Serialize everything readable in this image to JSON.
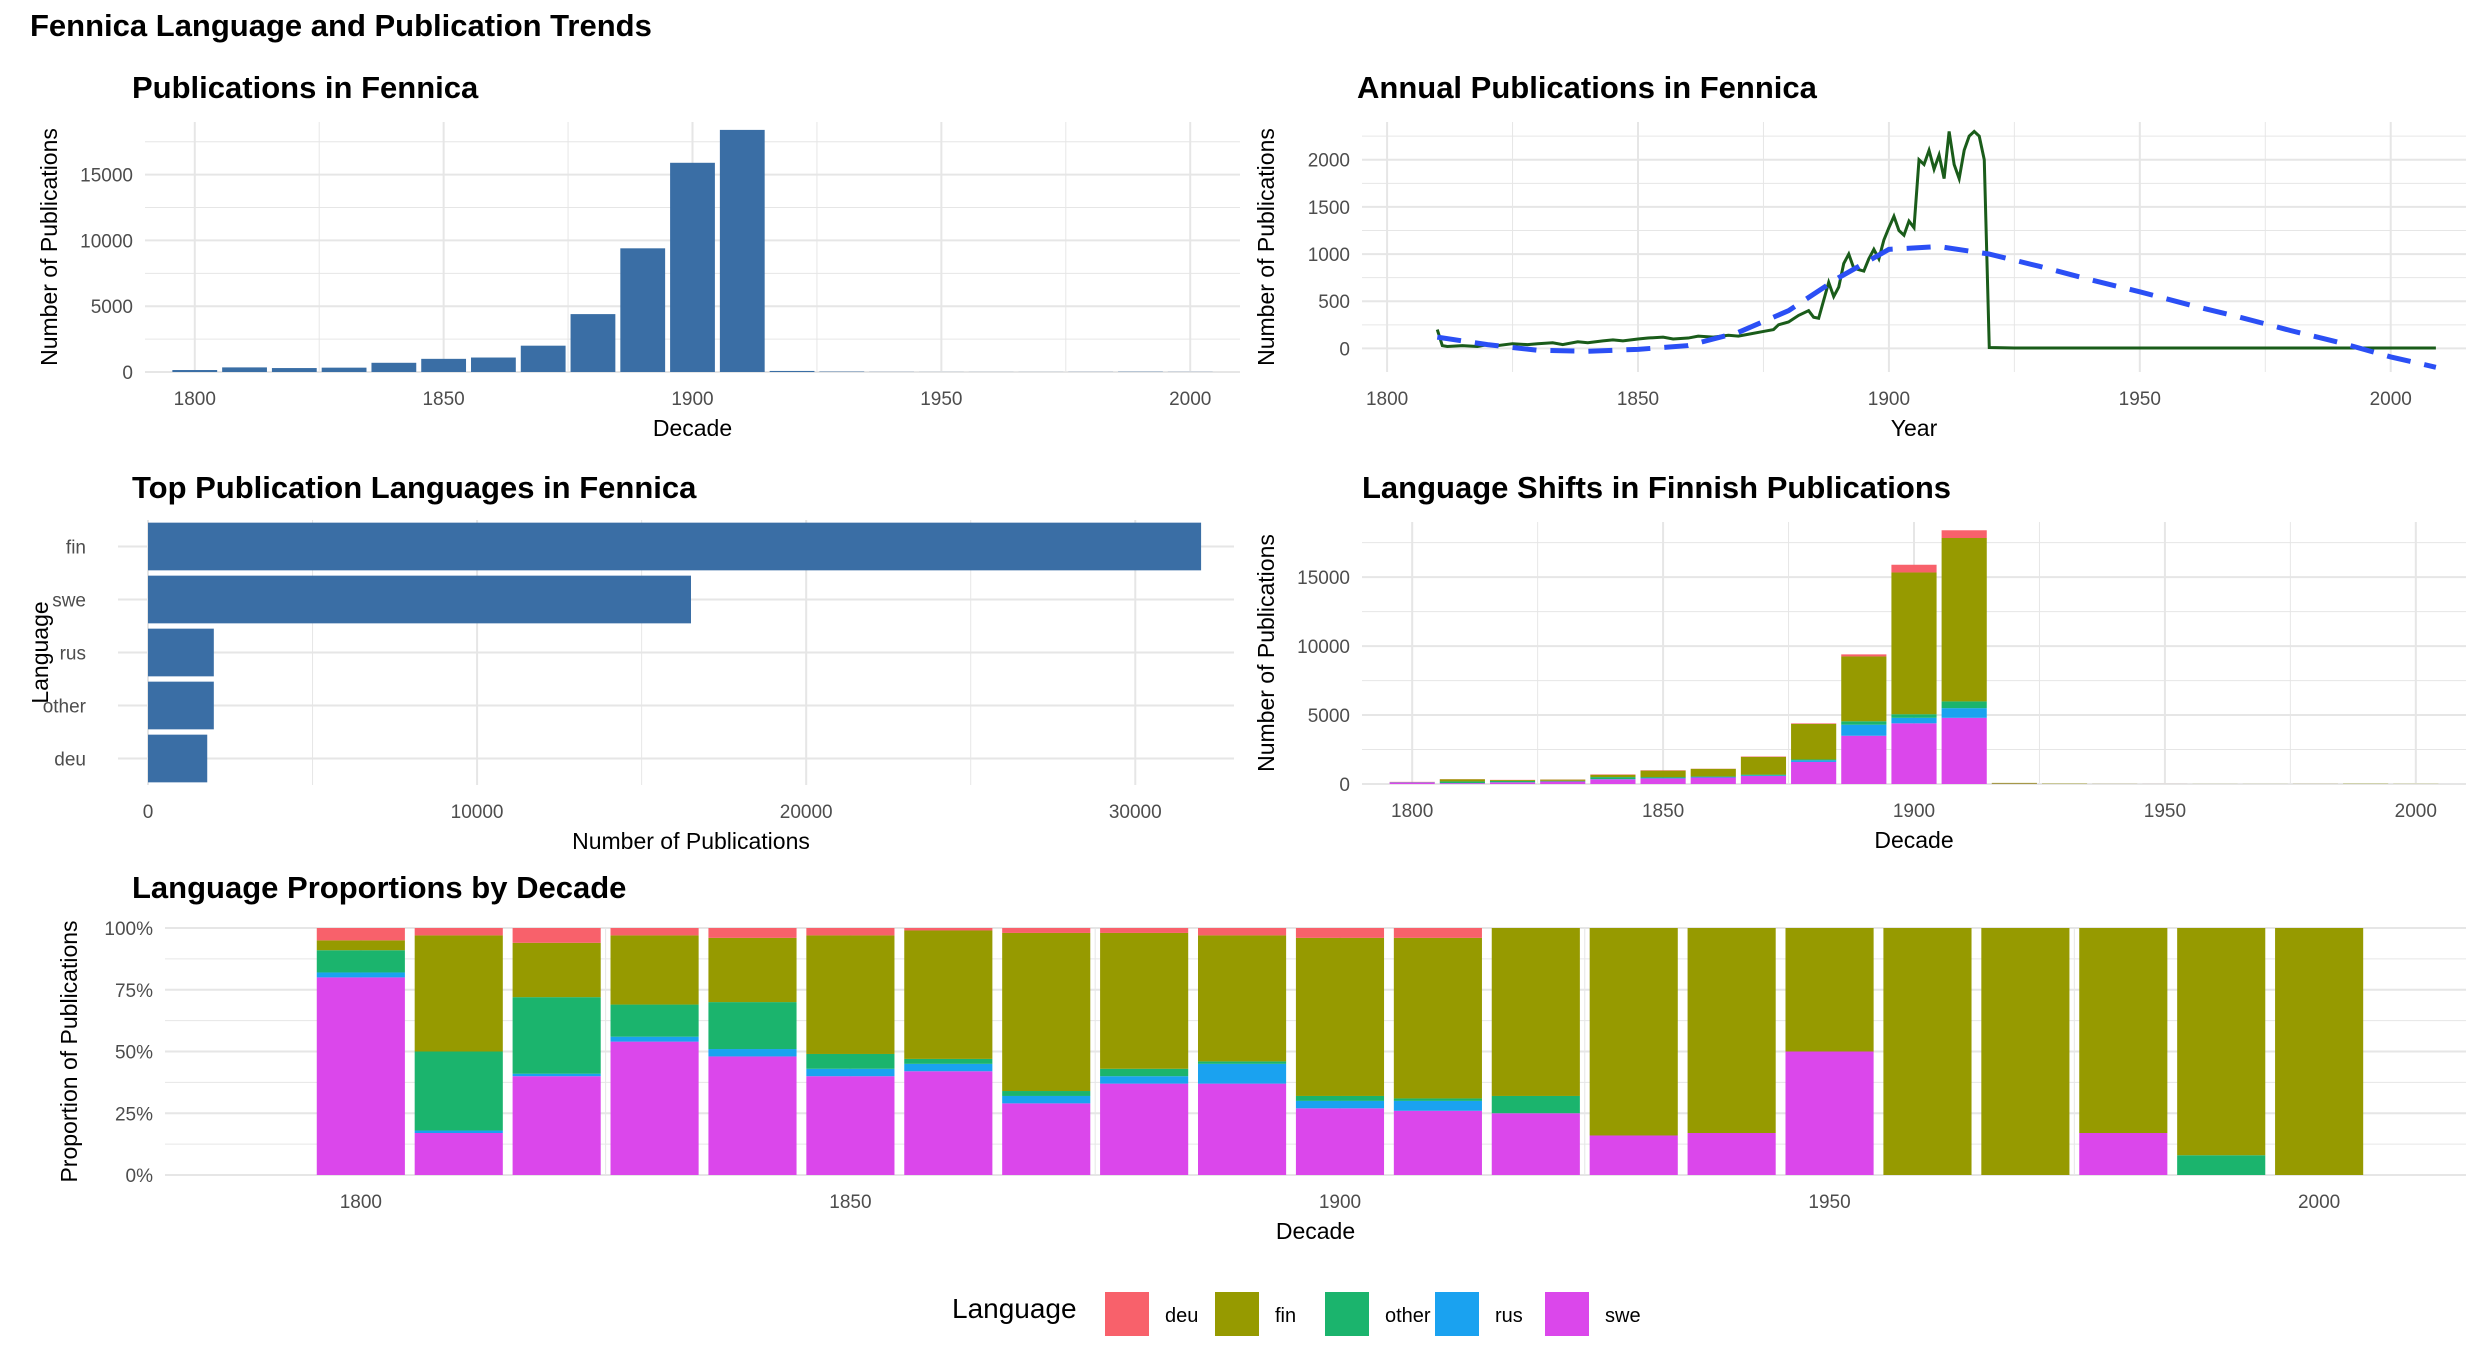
{
  "title": "Fennica Language and Publication Trends",
  "colors": {
    "bar": "#3a6ea5",
    "line": "#1a5c1a",
    "smooth": "#2b4ff5",
    "grid": "#e6e6e6",
    "deu": "#f8616b",
    "fin": "#969a00",
    "other": "#1bb46d",
    "rus": "#1aa2f0",
    "swe": "#db47eb"
  },
  "legend": {
    "title": "Language",
    "position": "bottom",
    "items": [
      "deu",
      "fin",
      "other",
      "rus",
      "swe"
    ]
  },
  "chart_data": [
    {
      "id": "decade-bars",
      "type": "bar",
      "title": "Publications in Fennica",
      "xlabel": "Decade",
      "ylabel": "Number of Publications",
      "xlim": [
        1790,
        2010
      ],
      "ylim": [
        0,
        19000
      ],
      "xticks": [
        1800,
        1850,
        1900,
        1950,
        2000
      ],
      "yticks": [
        0,
        5000,
        10000,
        15000
      ],
      "x": [
        1800,
        1810,
        1820,
        1830,
        1840,
        1850,
        1860,
        1870,
        1880,
        1890,
        1900,
        1910,
        1920,
        1930,
        1940,
        1950,
        1960,
        1970,
        1980,
        1990,
        2000
      ],
      "values": [
        150,
        350,
        300,
        330,
        700,
        1000,
        1100,
        2000,
        4400,
        9400,
        15900,
        18400,
        80,
        30,
        10,
        5,
        5,
        5,
        10,
        20,
        10
      ]
    },
    {
      "id": "annual-line",
      "type": "line",
      "title": "Annual Publications in Fennica",
      "xlabel": "Year",
      "ylabel": "Number of Publications",
      "xlim": [
        1795,
        2015
      ],
      "ylim": [
        -250,
        2400
      ],
      "xticks": [
        1800,
        1850,
        1900,
        1950,
        2000
      ],
      "yticks": [
        0,
        500,
        1000,
        1500,
        2000
      ],
      "series": [
        {
          "x": [
            1810,
            1811,
            1812,
            1815,
            1818,
            1820,
            1822,
            1825,
            1828,
            1830,
            1833,
            1835,
            1838,
            1840,
            1843,
            1845,
            1847,
            1850,
            1852,
            1855,
            1857,
            1860,
            1862,
            1865,
            1868,
            1870,
            1872,
            1875,
            1877,
            1878,
            1880,
            1882,
            1884,
            1885,
            1886,
            1888,
            1889,
            1890,
            1891,
            1892,
            1893,
            1895,
            1896,
            1897,
            1898,
            1899,
            1900,
            1901,
            1902,
            1903,
            1904,
            1905,
            1906,
            1907,
            1908,
            1909,
            1910,
            1911,
            1912,
            1913,
            1914,
            1915,
            1916,
            1917,
            1918,
            1919,
            1920,
            1925,
            1930,
            1940,
            1950,
            1960,
            1970,
            1980,
            1990,
            2000,
            2009
          ],
          "values": [
            200,
            30,
            20,
            30,
            20,
            40,
            30,
            50,
            40,
            50,
            60,
            40,
            70,
            60,
            80,
            90,
            80,
            100,
            110,
            120,
            100,
            110,
            130,
            120,
            140,
            130,
            150,
            180,
            200,
            250,
            280,
            350,
            400,
            330,
            320,
            700,
            550,
            650,
            900,
            1000,
            850,
            820,
            950,
            1050,
            950,
            1150,
            1280,
            1400,
            1250,
            1200,
            1350,
            1280,
            2000,
            1950,
            2100,
            1900,
            2050,
            1800,
            2300,
            1950,
            1800,
            2100,
            2250,
            2300,
            2250,
            2000,
            10,
            5,
            5,
            5,
            5,
            5,
            5,
            5,
            5,
            5,
            5
          ]
        },
        {
          "x": [
            1810,
            1820,
            1830,
            1840,
            1850,
            1860,
            1870,
            1880,
            1890,
            1900,
            1910,
            1920,
            1930,
            1940,
            1950,
            1960,
            1970,
            1980,
            1990,
            2000,
            2009
          ],
          "values": [
            120,
            40,
            -20,
            -30,
            -10,
            30,
            170,
            400,
            750,
            1050,
            1080,
            1000,
            870,
            730,
            600,
            460,
            330,
            190,
            60,
            -90,
            -200
          ]
        }
      ]
    },
    {
      "id": "language-bars",
      "type": "bar",
      "title": "Top Publication Languages in Fennica",
      "xlabel": "Number of Publications",
      "ylabel": "Language",
      "xlim": [
        0,
        33000
      ],
      "xticks": [
        0,
        10000,
        20000,
        30000
      ],
      "categories": [
        "fin",
        "swe",
        "rus",
        "other",
        "deu"
      ],
      "values": [
        32000,
        16500,
        2000,
        2000,
        1800
      ]
    },
    {
      "id": "language-stack",
      "type": "bar",
      "title": "Language Shifts in Finnish Publications",
      "xlabel": "Decade",
      "ylabel": "Number of Publications",
      "xlim": [
        1790,
        2010
      ],
      "ylim": [
        0,
        19000
      ],
      "xticks": [
        1800,
        1850,
        1900,
        1950,
        2000
      ],
      "yticks": [
        0,
        5000,
        10000,
        15000
      ],
      "x": [
        1800,
        1810,
        1820,
        1830,
        1840,
        1850,
        1860,
        1870,
        1880,
        1890,
        1900,
        1910,
        1920,
        1930,
        1940,
        1950,
        1960,
        1970,
        1980,
        1990,
        2000
      ],
      "series": [
        {
          "name": "swe",
          "values": [
            120,
            60,
            120,
            180,
            340,
            400,
            470,
            580,
            1600,
            3500,
            4400,
            4800,
            20,
            5,
            2,
            2,
            0,
            0,
            2,
            0,
            0
          ]
        },
        {
          "name": "rus",
          "values": [
            5,
            5,
            5,
            5,
            20,
            30,
            40,
            50,
            120,
            800,
            400,
            700,
            0,
            0,
            0,
            0,
            0,
            0,
            0,
            0,
            0
          ]
        },
        {
          "name": "other",
          "values": [
            15,
            120,
            95,
            45,
            140,
            70,
            40,
            50,
            60,
            250,
            260,
            490,
            5,
            0,
            0,
            0,
            0,
            0,
            0,
            2,
            0
          ]
        },
        {
          "name": "fin",
          "values": [
            5,
            160,
            65,
            90,
            170,
            470,
            550,
            1290,
            2580,
            4700,
            10280,
            11850,
            55,
            25,
            8,
            3,
            5,
            5,
            8,
            18,
            10
          ]
        },
        {
          "name": "deu",
          "values": [
            10,
            10,
            15,
            10,
            30,
            30,
            10,
            30,
            40,
            150,
            560,
            560,
            0,
            0,
            0,
            0,
            0,
            0,
            0,
            0,
            0
          ]
        }
      ]
    },
    {
      "id": "proportion-stack",
      "type": "bar",
      "title": "Language Proportions by Decade",
      "xlabel": "Decade",
      "ylabel": "Proportion of Publications",
      "xlim": [
        1780,
        2015
      ],
      "ylim": [
        0,
        1
      ],
      "xticks": [
        1800,
        1850,
        1900,
        1950,
        2000
      ],
      "yticks": [
        "0%",
        "25%",
        "50%",
        "75%",
        "100%"
      ],
      "x": [
        1800,
        1810,
        1820,
        1830,
        1840,
        1850,
        1860,
        1870,
        1880,
        1890,
        1900,
        1910,
        1920,
        1930,
        1940,
        1950,
        1960,
        1970,
        1980,
        1990,
        2000
      ],
      "series": [
        {
          "name": "swe",
          "values": [
            0.8,
            0.17,
            0.4,
            0.54,
            0.48,
            0.4,
            0.42,
            0.29,
            0.37,
            0.37,
            0.27,
            0.26,
            0.25,
            0.16,
            0.17,
            0.5,
            0,
            0,
            0.17,
            0,
            0
          ]
        },
        {
          "name": "rus",
          "values": [
            0.02,
            0.01,
            0.01,
            0.02,
            0.03,
            0.03,
            0.03,
            0.03,
            0.03,
            0.08,
            0.03,
            0.04,
            0,
            0,
            0,
            0,
            0,
            0,
            0,
            0,
            0
          ]
        },
        {
          "name": "other",
          "values": [
            0.09,
            0.32,
            0.31,
            0.13,
            0.19,
            0.06,
            0.02,
            0.02,
            0.03,
            0.01,
            0.02,
            0.01,
            0.07,
            0,
            0,
            0,
            0,
            0,
            0,
            0.08,
            0
          ]
        },
        {
          "name": "fin",
          "values": [
            0.04,
            0.47,
            0.22,
            0.28,
            0.26,
            0.48,
            0.52,
            0.64,
            0.55,
            0.51,
            0.64,
            0.65,
            0.68,
            0.84,
            0.83,
            0.5,
            1,
            1,
            0.83,
            0.92,
            1
          ]
        },
        {
          "name": "deu",
          "values": [
            0.05,
            0.03,
            0.06,
            0.03,
            0.04,
            0.03,
            0.01,
            0.02,
            0.02,
            0.03,
            0.04,
            0.04,
            0,
            0,
            0,
            0,
            0,
            0,
            0,
            0,
            0
          ]
        }
      ]
    }
  ]
}
